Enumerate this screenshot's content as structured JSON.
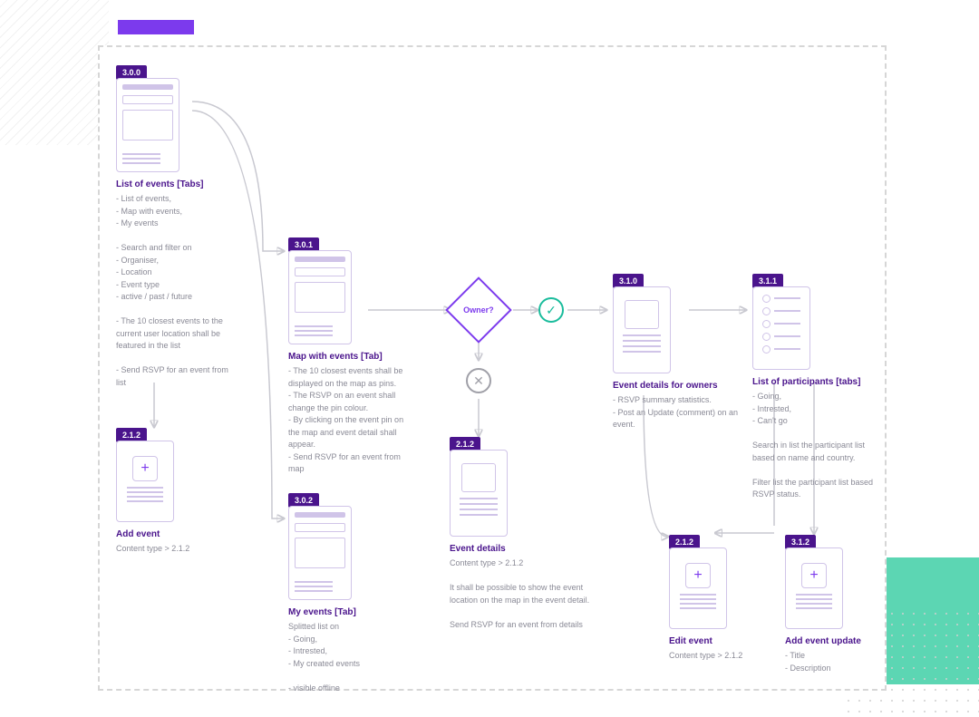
{
  "colors": {
    "accent": "#7c3aed",
    "badge_bg": "#4a148c",
    "badge_text": "#ffffff",
    "title": "#4a148c",
    "desc": "#8a8a96",
    "wire_border": "#d0c4e8",
    "teal": "#5cd6b3",
    "connector": "#c8c8d0",
    "yes": "#1abc9c",
    "no": "#a0a0a8",
    "dash": "#d6d6d6"
  },
  "decision": {
    "label": "Owner?",
    "yes_icon": "✓",
    "no_icon": "✕"
  },
  "nodes": {
    "n300": {
      "badge": "3.0.0",
      "title": "List of events [Tabs]",
      "desc": "- List of events,\n- Map with events,\n- My events\n\n- Search and filter on\n- Organiser,\n- Location\n- Event type\n- active / past / future\n\n- The 10 closest events to the current user location shall be featured in the list\n\n- Send RSVP for an event from list"
    },
    "n212a": {
      "badge": "2.1.2",
      "title": "Add event",
      "desc": "Content type > 2.1.2"
    },
    "n301": {
      "badge": "3.0.1",
      "title": "Map with events [Tab]",
      "desc": "- The 10 closest events shall be displayed on the map as pins.\n- The RSVP on an event shall change the pin colour.\n- By clicking on the event pin on the map and event detail shall appear.\n- Send RSVP for an event from map"
    },
    "n302": {
      "badge": "3.0.2",
      "title": "My events [Tab]",
      "desc": "Splitted list on\n- Going,\n- Intrested,\n- My created events\n\n- visible offline"
    },
    "n212b": {
      "badge": "2.1.2",
      "title": "Event details",
      "desc": "Content type > 2.1.2\n\nIt shall be possible to show the event location on the map in the event detail.\n\nSend RSVP for an event from details"
    },
    "n310": {
      "badge": "3.1.0",
      "title": "Event details for owners",
      "desc": "- RSVP summary statistics.\n- Post an Update (comment) on an event."
    },
    "n311": {
      "badge": "3.1.1",
      "title": "List of participants [tabs]",
      "desc": "- Going,\n- Intrested,\n- Can't go\n\nSearch in list the participant list based on name and country.\n\nFilter list the participant list based RSVP status."
    },
    "n212c": {
      "badge": "2.1.2",
      "title": "Edit event",
      "desc": "Content type > 2.1.2"
    },
    "n312": {
      "badge": "3.1.2",
      "title": "Add event update",
      "desc": "- Title\n- Description"
    }
  }
}
